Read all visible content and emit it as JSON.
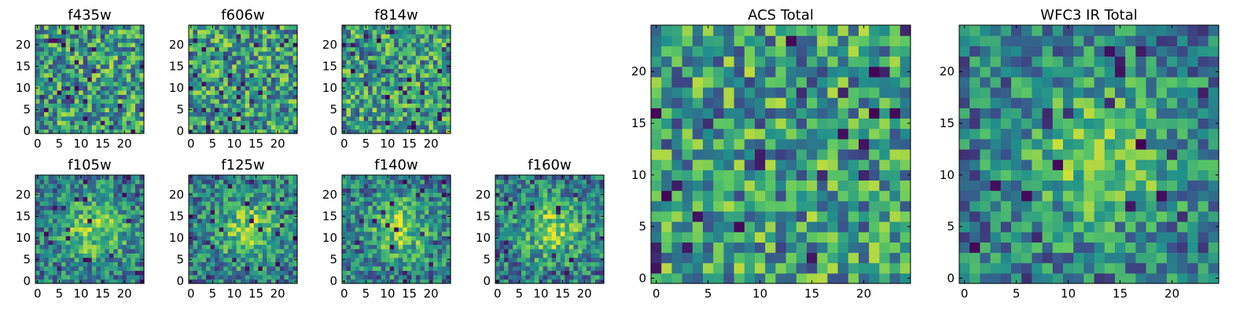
{
  "figure": {
    "colormap": "viridis",
    "colors": [
      "#440154",
      "#3b528b",
      "#21918c",
      "#5ec962",
      "#fde725"
    ]
  },
  "chart_data": [
    {
      "type": "heatmap",
      "id": "f435w",
      "title": "f435w",
      "nx": 25,
      "ny": 25,
      "xlim": [
        -0.5,
        24.5
      ],
      "ylim": [
        -0.5,
        24.5
      ],
      "xticks": [
        0,
        5,
        10,
        15,
        20
      ],
      "yticks": [
        0,
        5,
        10,
        15,
        20
      ],
      "xticklabels": [
        "0",
        "5",
        "10",
        "15",
        "20"
      ],
      "yticklabels": [
        "0",
        "5",
        "10",
        "15",
        "20"
      ],
      "texture": "noise",
      "seed": 11
    },
    {
      "type": "heatmap",
      "id": "f606w",
      "title": "f606w",
      "nx": 25,
      "ny": 25,
      "xlim": [
        -0.5,
        24.5
      ],
      "ylim": [
        -0.5,
        24.5
      ],
      "xticks": [
        0,
        5,
        10,
        15,
        20
      ],
      "yticks": [
        0,
        5,
        10,
        15,
        20
      ],
      "xticklabels": [
        "0",
        "5",
        "10",
        "15",
        "20"
      ],
      "yticklabels": [
        "0",
        "5",
        "10",
        "15",
        "20"
      ],
      "texture": "noise",
      "seed": 23
    },
    {
      "type": "heatmap",
      "id": "f814w",
      "title": "f814w",
      "nx": 25,
      "ny": 25,
      "xlim": [
        -0.5,
        24.5
      ],
      "ylim": [
        -0.5,
        24.5
      ],
      "xticks": [
        0,
        5,
        10,
        15,
        20
      ],
      "yticks": [
        0,
        5,
        10,
        15,
        20
      ],
      "xticklabels": [
        "0",
        "5",
        "10",
        "15",
        "20"
      ],
      "yticklabels": [
        "0",
        "5",
        "10",
        "15",
        "20"
      ],
      "texture": "noise",
      "seed": 37
    },
    {
      "type": "heatmap",
      "id": "f105w",
      "title": "f105w",
      "nx": 25,
      "ny": 25,
      "xlim": [
        -0.5,
        24.5
      ],
      "ylim": [
        -0.5,
        24.5
      ],
      "xticks": [
        0,
        5,
        10,
        15,
        20
      ],
      "yticks": [
        0,
        5,
        10,
        15,
        20
      ],
      "xticklabels": [
        "0",
        "5",
        "10",
        "15",
        "20"
      ],
      "yticklabels": [
        "0",
        "5",
        "10",
        "15",
        "20"
      ],
      "texture": "blob",
      "seed": 41
    },
    {
      "type": "heatmap",
      "id": "f125w",
      "title": "f125w",
      "nx": 25,
      "ny": 25,
      "xlim": [
        -0.5,
        24.5
      ],
      "ylim": [
        -0.5,
        24.5
      ],
      "xticks": [
        0,
        5,
        10,
        15,
        20
      ],
      "yticks": [
        0,
        5,
        10,
        15,
        20
      ],
      "xticklabels": [
        "0",
        "5",
        "10",
        "15",
        "20"
      ],
      "yticklabels": [
        "0",
        "5",
        "10",
        "15",
        "20"
      ],
      "texture": "blob",
      "seed": 53
    },
    {
      "type": "heatmap",
      "id": "f140w",
      "title": "f140w",
      "nx": 25,
      "ny": 25,
      "xlim": [
        -0.5,
        24.5
      ],
      "ylim": [
        -0.5,
        24.5
      ],
      "xticks": [
        0,
        5,
        10,
        15,
        20
      ],
      "yticks": [
        0,
        5,
        10,
        15,
        20
      ],
      "xticklabels": [
        "0",
        "5",
        "10",
        "15",
        "20"
      ],
      "yticklabels": [
        "0",
        "5",
        "10",
        "15",
        "20"
      ],
      "texture": "blob",
      "seed": 67
    },
    {
      "type": "heatmap",
      "id": "f160w",
      "title": "f160w",
      "nx": 25,
      "ny": 25,
      "xlim": [
        -0.5,
        24.5
      ],
      "ylim": [
        -0.5,
        24.5
      ],
      "xticks": [
        0,
        5,
        10,
        15,
        20
      ],
      "yticks": [
        0,
        5,
        10,
        15,
        20
      ],
      "xticklabels": [
        "0",
        "5",
        "10",
        "15",
        "20"
      ],
      "yticklabels": [
        "0",
        "5",
        "10",
        "15",
        "20"
      ],
      "texture": "blob",
      "seed": 79
    },
    {
      "type": "heatmap",
      "id": "acs-total",
      "title": "ACS Total",
      "nx": 25,
      "ny": 25,
      "xlim": [
        -0.5,
        24.5
      ],
      "ylim": [
        -0.5,
        24.5
      ],
      "xticks": [
        0,
        5,
        10,
        15,
        20
      ],
      "yticks": [
        0,
        5,
        10,
        15,
        20
      ],
      "xticklabels": [
        "0",
        "5",
        "10",
        "15",
        "20"
      ],
      "yticklabels": [
        "0",
        "5",
        "10",
        "15",
        "20"
      ],
      "texture": "noise",
      "seed": 83
    },
    {
      "type": "heatmap",
      "id": "wfc3-total",
      "title": "WFC3 IR Total",
      "nx": 25,
      "ny": 25,
      "xlim": [
        -0.5,
        24.5
      ],
      "ylim": [
        -0.5,
        24.5
      ],
      "xticks": [
        0,
        5,
        10,
        15,
        20
      ],
      "yticks": [
        0,
        5,
        10,
        15,
        20
      ],
      "xticklabels": [
        "0",
        "5",
        "10",
        "15",
        "20"
      ],
      "yticklabels": [
        "0",
        "5",
        "10",
        "15",
        "20"
      ],
      "texture": "blob",
      "seed": 97
    }
  ]
}
